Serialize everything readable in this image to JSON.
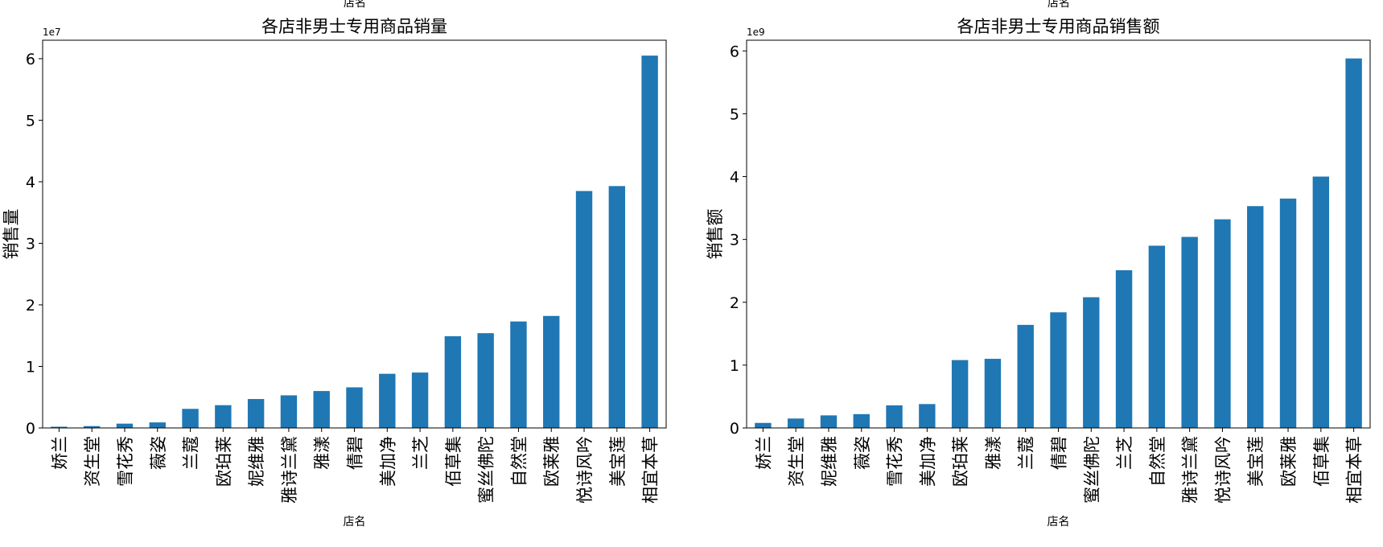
{
  "chart_data": [
    {
      "type": "bar",
      "title": "各店非男士专用商品销量",
      "xlabel": "店名",
      "ylabel": "销售量",
      "offset_text": "1e7",
      "scale": 10000000,
      "ylim": [
        0,
        6.3
      ],
      "yticks": [
        "0",
        "1",
        "2",
        "3",
        "4",
        "5",
        "6"
      ],
      "bar_color": "#1f77b4",
      "categories": [
        "娇兰",
        "资生堂",
        "雪花秀",
        "薇姿",
        "兰蔻",
        "欧珀莱",
        "妮维雅",
        "雅诗兰黛",
        "雅漾",
        "倩碧",
        "美加净",
        "兰芝",
        "佰草集",
        "蜜丝佛陀",
        "自然堂",
        "欧莱雅",
        "悦诗风吟",
        "美宝莲",
        "相宜本草"
      ],
      "values": [
        0.02,
        0.03,
        0.07,
        0.09,
        0.31,
        0.37,
        0.47,
        0.53,
        0.6,
        0.66,
        0.88,
        0.9,
        1.49,
        1.54,
        1.73,
        1.82,
        3.85,
        3.93,
        6.05
      ]
    },
    {
      "type": "bar",
      "title": "各店非男士专用商品销售额",
      "xlabel": "店名",
      "ylabel": "销售额",
      "offset_text": "1e9",
      "scale": 1000000000,
      "ylim": [
        0,
        6.17
      ],
      "yticks": [
        "0",
        "1",
        "2",
        "3",
        "4",
        "5",
        "6"
      ],
      "bar_color": "#1f77b4",
      "categories": [
        "娇兰",
        "资生堂",
        "妮维雅",
        "薇姿",
        "雪花秀",
        "美加净",
        "欧珀莱",
        "雅漾",
        "兰蔻",
        "倩碧",
        "蜜丝佛陀",
        "兰芝",
        "自然堂",
        "雅诗兰黛",
        "悦诗风吟",
        "美宝莲",
        "欧莱雅",
        "佰草集",
        "相宜本草"
      ],
      "values": [
        0.08,
        0.15,
        0.2,
        0.22,
        0.36,
        0.38,
        1.08,
        1.1,
        1.64,
        1.84,
        2.08,
        2.51,
        2.9,
        3.04,
        3.32,
        3.53,
        3.65,
        4.0,
        5.88
      ]
    }
  ],
  "cut_labels": [
    "店名",
    "店名"
  ]
}
